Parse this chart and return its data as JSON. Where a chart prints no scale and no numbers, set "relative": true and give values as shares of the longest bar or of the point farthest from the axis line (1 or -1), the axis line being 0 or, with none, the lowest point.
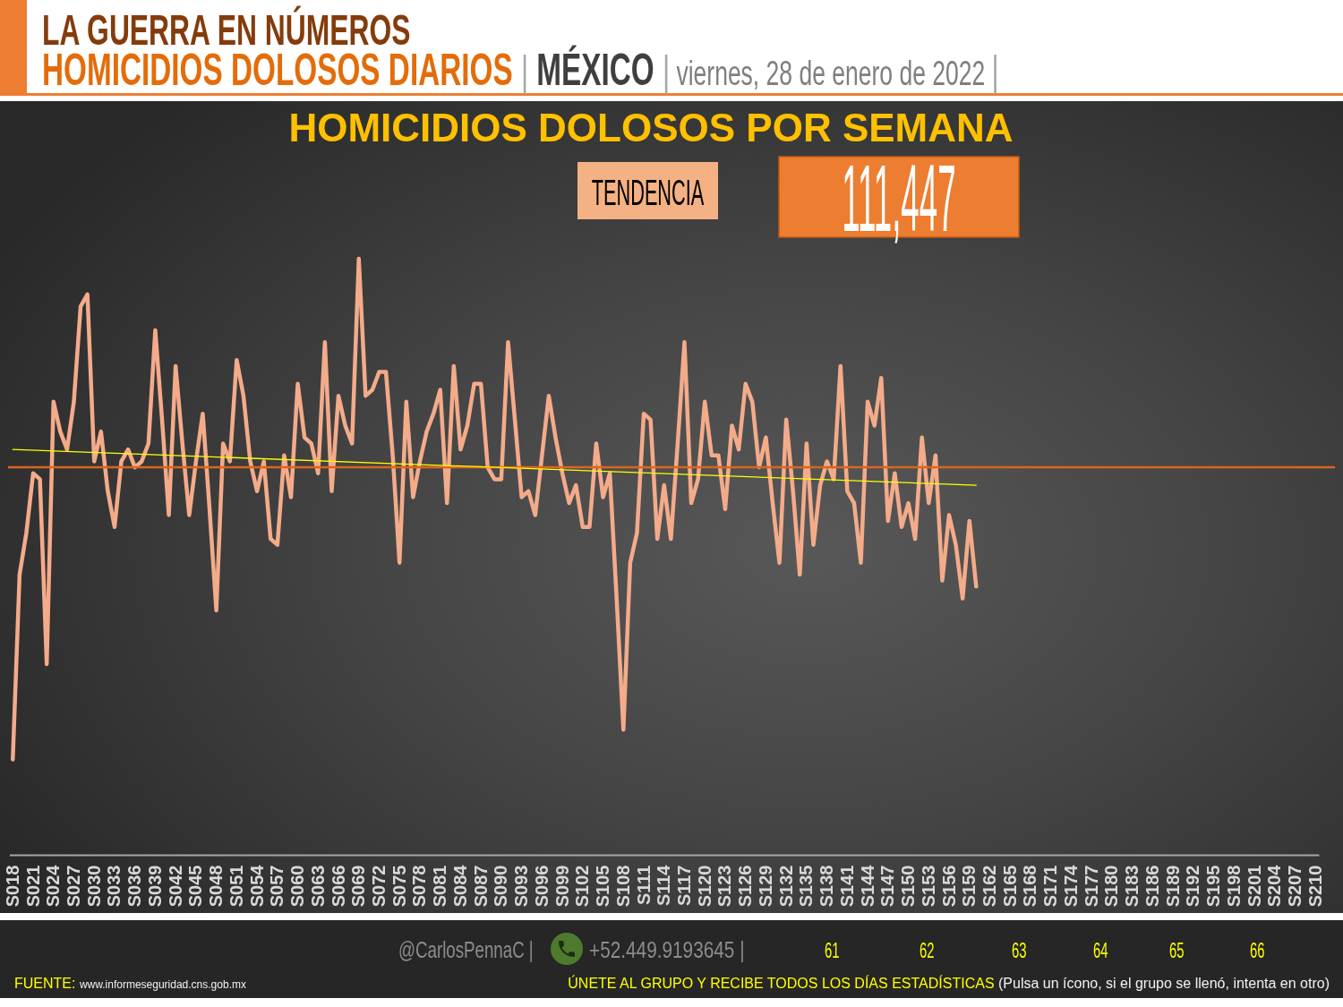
{
  "chart_data": {
    "type": "line",
    "title": "HOMICIDIOS DOLOSOS POR SEMANA",
    "relative": true,
    "annotations": [
      "LA GUERRA EN NÚMEROS",
      "HOMICIDIOS DOLOSOS DIARIOS | MÉXICO | viernes, 28 de enero de 2022 |",
      "TENDENCIA",
      "111,447",
      "@CarlosPennaC |",
      "+52.449.9193645 |",
      "61",
      "62",
      "63",
      "64",
      "65",
      "66",
      "FUENTE: www.informeseguridad.cns.gob.mx",
      "ÚNETE AL GRUPO Y RECIBE TODOS LOS DÍAS ESTADÍSTICAS (Pulsa un ícono, si el grupo se llenó, intenta en otro)"
    ],
    "categories": [
      "S018",
      null,
      null,
      "S021",
      null,
      null,
      "S024",
      null,
      null,
      "S027",
      null,
      null,
      "S030",
      null,
      null,
      "S033",
      null,
      null,
      "S036",
      null,
      null,
      "S039",
      null,
      null,
      "S042",
      null,
      null,
      "S045",
      null,
      null,
      "S048",
      null,
      null,
      "S051",
      null,
      null,
      "S054",
      null,
      null,
      "S057",
      null,
      null,
      "S060",
      null,
      null,
      "S063",
      null,
      null,
      "S066",
      null,
      null,
      "S069",
      null,
      null,
      "S072",
      null,
      null,
      "S075",
      null,
      null,
      "S078",
      null,
      null,
      "S081",
      null,
      null,
      "S084",
      null,
      null,
      "S087",
      null,
      null,
      "S090",
      null,
      null,
      "S093",
      null,
      null,
      "S096",
      null,
      null,
      "S099",
      null,
      null,
      "S102",
      null,
      null,
      "S105",
      null,
      null,
      "S108",
      null,
      null,
      "S111",
      null,
      null,
      "S114",
      null,
      null,
      "S117",
      null,
      null,
      "S120",
      null,
      null,
      "S123",
      null,
      null,
      "S126",
      null,
      null,
      "S129",
      null,
      null,
      "S132",
      null,
      null,
      "S135",
      null,
      null,
      "S138",
      null,
      null,
      "S141",
      null,
      null,
      "S144",
      null,
      null,
      "S147",
      null,
      null,
      "S150",
      null,
      null,
      "S153",
      null,
      null,
      "S156",
      null,
      null,
      "S159",
      null,
      null,
      "S162",
      null,
      null,
      "S165",
      null,
      null,
      "S168",
      null,
      null,
      "S171",
      null,
      null,
      "S174",
      null,
      null,
      "S177",
      null,
      null,
      "S180",
      null,
      null,
      "S183",
      null,
      null,
      "S186",
      null,
      null,
      "S189",
      null,
      null,
      "S192",
      null,
      null,
      "S195",
      null,
      null,
      "S198",
      null,
      null,
      "S201",
      null,
      null,
      "S204",
      null,
      null,
      "S207",
      null,
      null,
      "S210"
    ],
    "series": [
      {
        "color": "#f4ab8a",
        "values": [
          0.16,
          0.47,
          0.54,
          0.64,
          0.63,
          0.32,
          0.76,
          0.71,
          0.68,
          0.76,
          0.92,
          0.94,
          0.66,
          0.71,
          0.61,
          0.55,
          0.66,
          0.68,
          0.65,
          0.66,
          0.69,
          0.88,
          0.73,
          0.57,
          0.82,
          0.69,
          0.57,
          0.66,
          0.74,
          0.58,
          0.41,
          0.69,
          0.66,
          0.83,
          0.77,
          0.66,
          0.61,
          0.66,
          0.53,
          0.52,
          0.67,
          0.6,
          0.79,
          0.7,
          0.69,
          0.64,
          0.86,
          0.61,
          0.77,
          0.72,
          0.69,
          1,
          0.77,
          0.78,
          0.81,
          0.81,
          0.67,
          0.49,
          0.76,
          0.6,
          0.66,
          0.71,
          0.74,
          0.78,
          0.59,
          0.82,
          0.68,
          0.72,
          0.79,
          0.79,
          0.65,
          0.63,
          0.63,
          0.86,
          0.73,
          0.6,
          0.61,
          0.57,
          0.67,
          0.77,
          0.7,
          0.64,
          0.59,
          0.62,
          0.55,
          0.55,
          0.69,
          0.6,
          0.64,
          0.43,
          0.21,
          0.49,
          0.54,
          0.74,
          0.73,
          0.53,
          0.62,
          0.53,
          0.69,
          0.86,
          0.59,
          0.63,
          0.76,
          0.67,
          0.67,
          0.58,
          0.72,
          0.68,
          0.79,
          0.76,
          0.65,
          0.7,
          0.59,
          0.49,
          0.73,
          0.61,
          0.47,
          0.69,
          0.52,
          0.62,
          0.66,
          0.63,
          0.82,
          0.61,
          0.59,
          0.49,
          0.76,
          0.72,
          0.8,
          0.56,
          0.64,
          0.55,
          0.59,
          0.53,
          0.7,
          0.59,
          0.67,
          0.46,
          0.57,
          0.52,
          0.43,
          0.56,
          0.45,
          null,
          null,
          null,
          null,
          null,
          null,
          null,
          null,
          null,
          null,
          null,
          null,
          null,
          null,
          null,
          null,
          null,
          null,
          null,
          null,
          null,
          null,
          null,
          null,
          null,
          null,
          null,
          null,
          null,
          null,
          null,
          null,
          null,
          null,
          null,
          null,
          null,
          null,
          null,
          null,
          null,
          null,
          null,
          null,
          null,
          null,
          null,
          null,
          null,
          null
        ]
      },
      {
        "color": "#ffff00",
        "values": [
          0.68,
          null,
          null,
          null,
          null,
          null,
          null,
          null,
          null,
          null,
          null,
          null,
          null,
          null,
          null,
          null,
          null,
          null,
          null,
          null,
          null,
          null,
          null,
          null,
          null,
          null,
          null,
          null,
          null,
          null,
          null,
          null,
          null,
          null,
          null,
          null,
          null,
          null,
          null,
          null,
          null,
          null,
          null,
          null,
          null,
          null,
          null,
          null,
          null,
          null,
          null,
          null,
          null,
          null,
          null,
          null,
          null,
          null,
          null,
          null,
          null,
          null,
          null,
          null,
          null,
          null,
          null,
          null,
          null,
          null,
          null,
          null,
          null,
          null,
          null,
          null,
          null,
          null,
          null,
          null,
          null,
          null,
          null,
          null,
          null,
          null,
          null,
          null,
          null,
          null,
          null,
          null,
          null,
          null,
          null,
          null,
          null,
          null,
          null,
          null,
          null,
          null,
          null,
          null,
          null,
          null,
          null,
          null,
          null,
          null,
          null,
          null,
          null,
          null,
          null,
          null,
          null,
          null,
          null,
          null,
          null,
          null,
          null,
          null,
          null,
          null,
          null,
          null,
          null,
          null,
          null,
          null,
          null,
          null,
          null,
          null,
          null,
          null,
          null,
          null,
          null,
          null,
          0.62,
          null,
          null,
          null,
          null,
          null,
          null,
          null,
          null,
          null,
          null,
          null,
          null,
          null,
          null,
          null,
          null,
          null,
          null,
          null,
          null,
          null,
          null,
          null,
          null,
          null,
          null,
          null,
          null,
          null,
          null,
          null,
          null,
          null,
          null,
          null,
          null,
          null,
          null,
          null,
          null,
          null,
          null,
          null,
          null,
          null,
          null,
          null,
          null,
          null,
          null
        ]
      }
    ],
    "ref_lines": [
      {
        "axis": "y",
        "value": 0.65,
        "color": "#d9661f"
      }
    ]
  }
}
